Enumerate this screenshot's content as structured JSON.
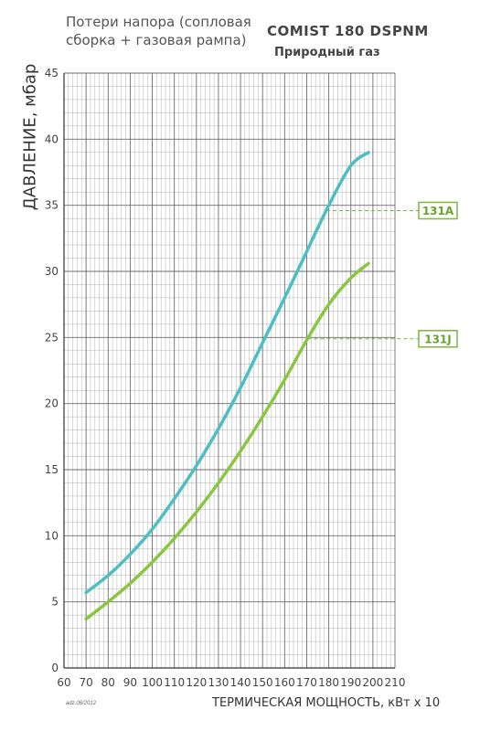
{
  "header": {
    "subtitle_line1": "Потери напора (сопловая",
    "subtitle_line2": "сборка + газовая рампа)",
    "model": "COMIST 180 DSPNM",
    "gas": "Природный газ"
  },
  "footer_note": "adz.06/2012",
  "colors": {
    "series_131A": "#4bbfc2",
    "series_131J": "#8ac63f",
    "grid": "#555555",
    "label_box": "#7fb540"
  },
  "chart_data": {
    "type": "line",
    "xlabel": "ТЕРМИЧЕСКАЯ МОЩНОСТЬ, кВт x 10",
    "ylabel": "ДАВЛЕНИЕ, мбар",
    "xlim": [
      60,
      210
    ],
    "ylim": [
      0,
      45
    ],
    "x_ticks": [
      60,
      70,
      80,
      90,
      100,
      110,
      120,
      130,
      140,
      150,
      160,
      170,
      180,
      190,
      200,
      210
    ],
    "y_ticks": [
      0,
      5,
      10,
      15,
      20,
      25,
      30,
      35,
      40,
      45
    ],
    "grid": true,
    "series": [
      {
        "name": "131A",
        "x": [
          70,
          80,
          90,
          100,
          110,
          120,
          130,
          140,
          150,
          160,
          170,
          180,
          190,
          198
        ],
        "y": [
          5.7,
          7.0,
          8.6,
          10.5,
          12.8,
          15.3,
          18.1,
          21.2,
          24.6,
          28.0,
          31.5,
          35.0,
          38.0,
          39.0
        ],
        "label_at_y": 34.6
      },
      {
        "name": "131J",
        "x": [
          70,
          80,
          90,
          100,
          110,
          120,
          130,
          140,
          150,
          160,
          170,
          180,
          190,
          198
        ],
        "y": [
          3.7,
          5.0,
          6.4,
          8.0,
          9.8,
          11.8,
          14.0,
          16.4,
          19.0,
          21.8,
          24.8,
          27.5,
          29.5,
          30.6
        ],
        "label_at_y": 24.9
      }
    ]
  }
}
